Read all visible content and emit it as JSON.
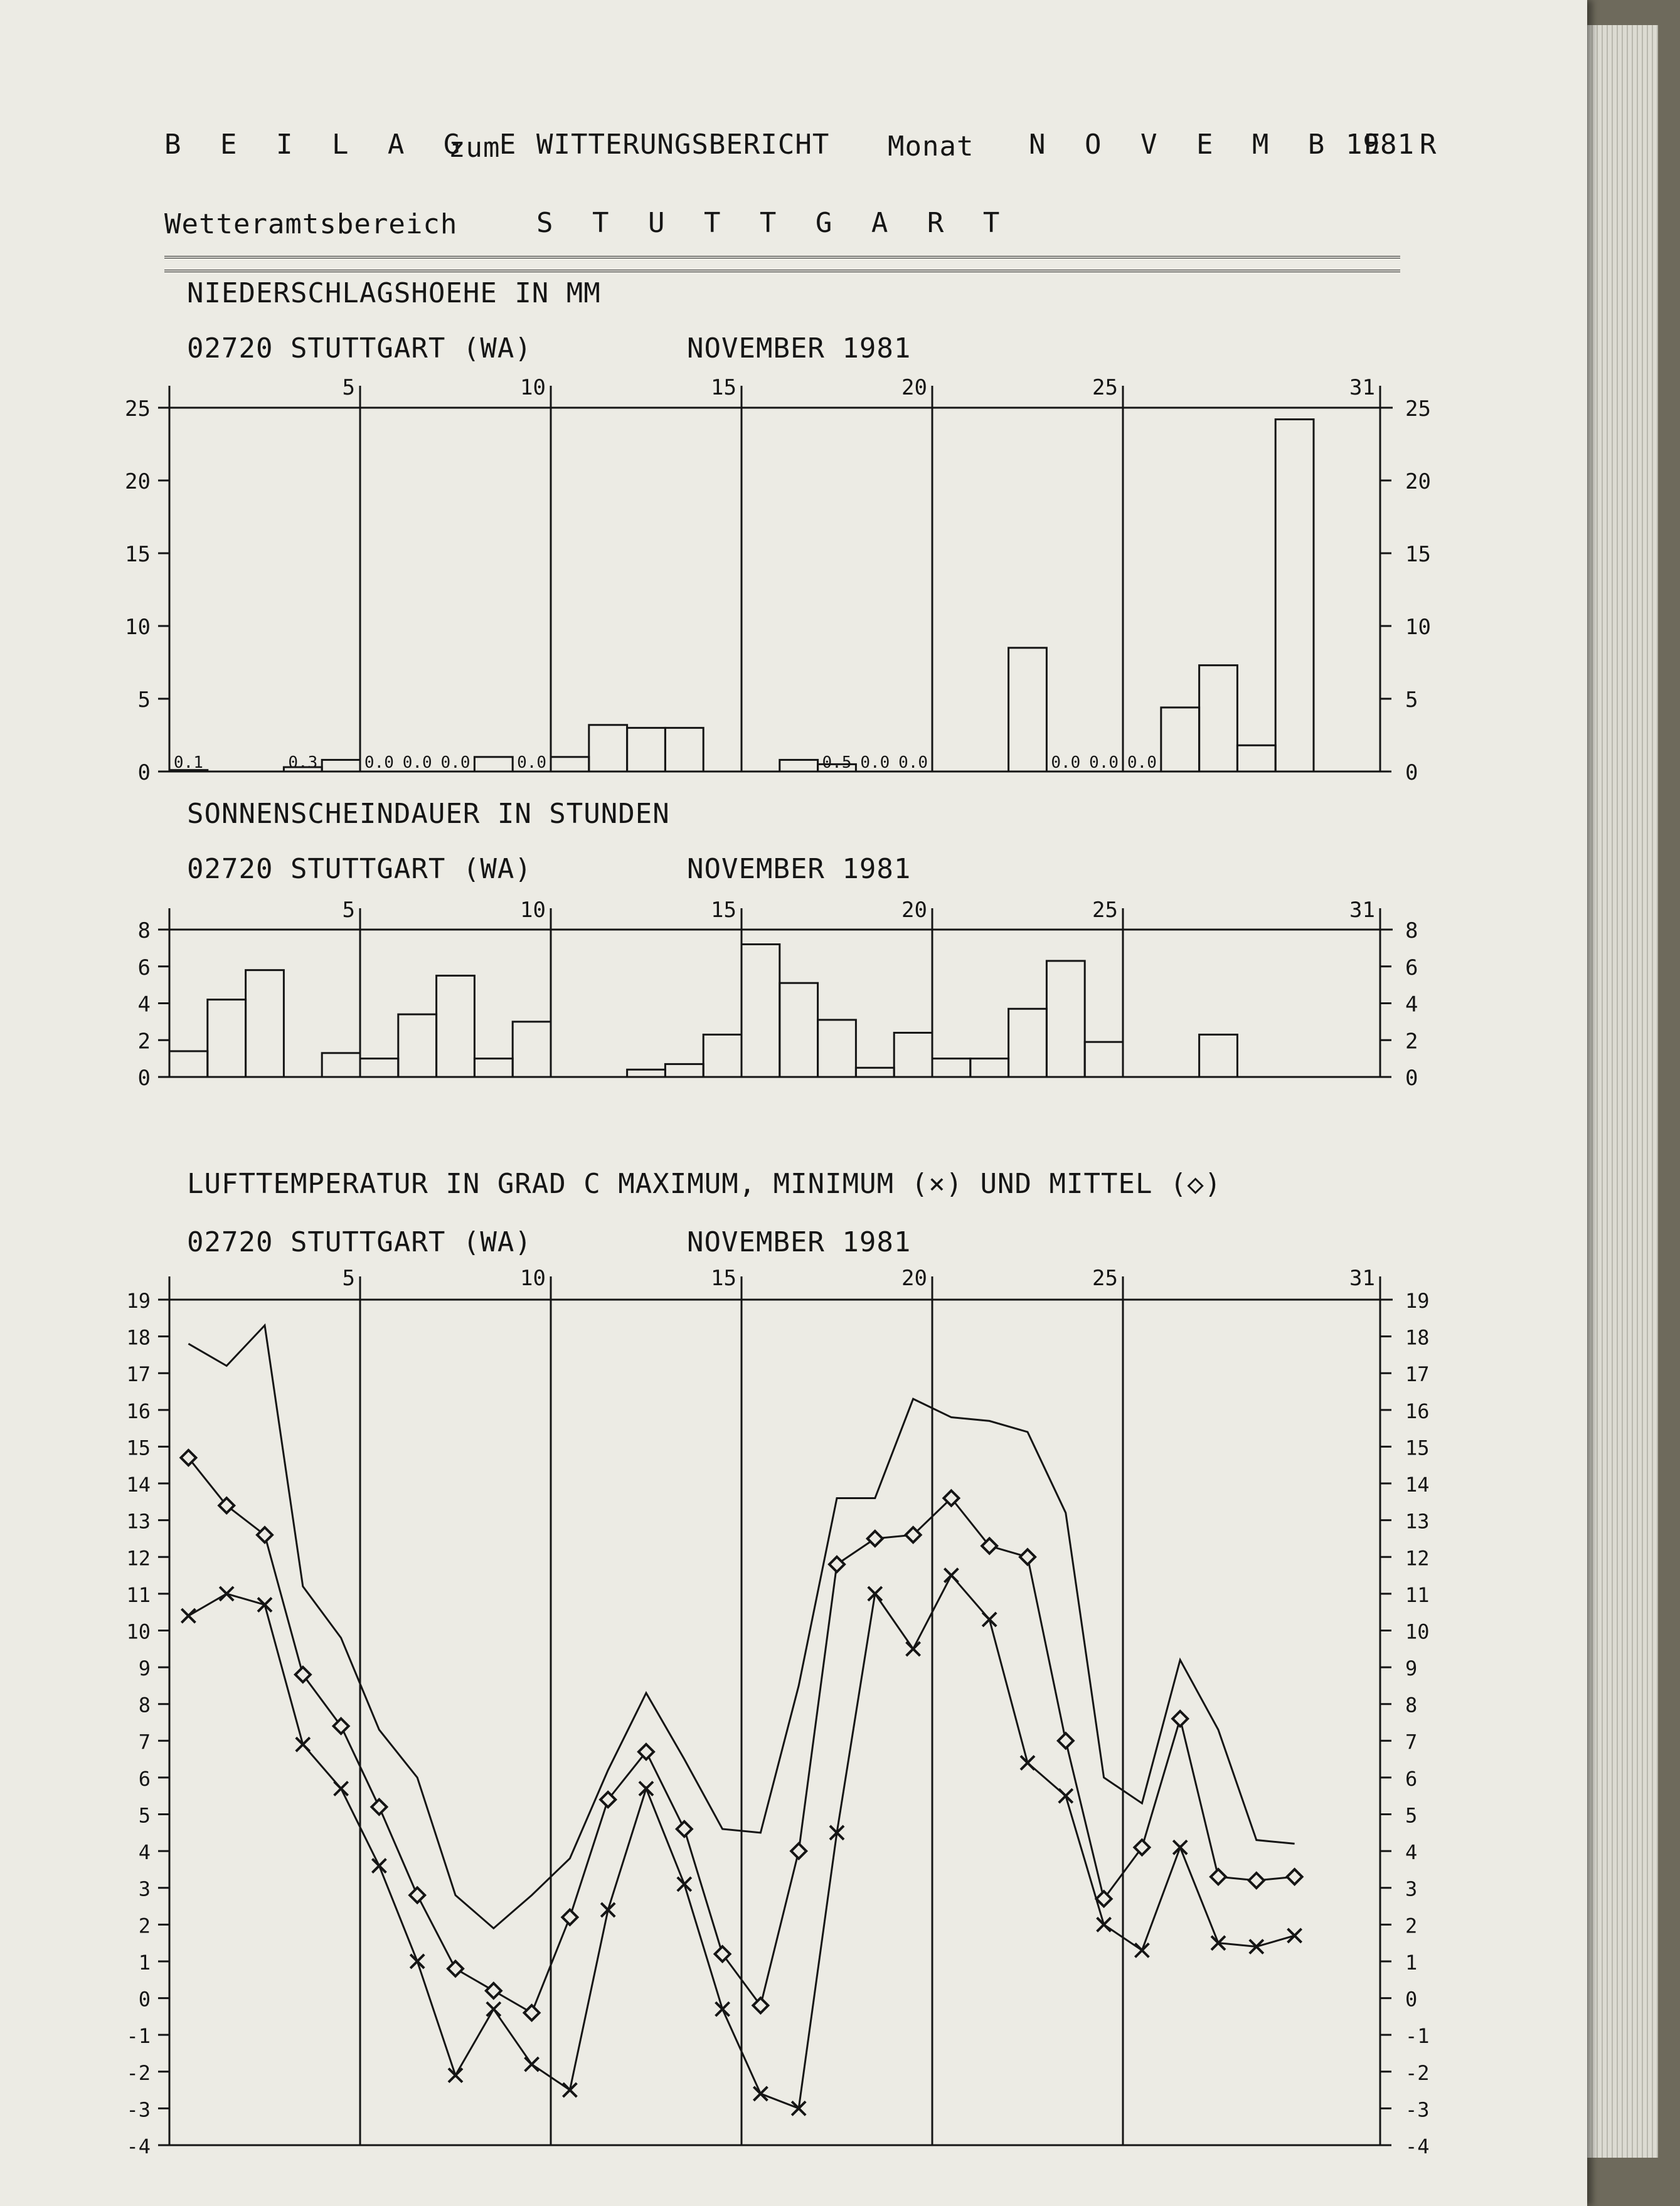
{
  "header": {
    "beilage": "B E I L A G E",
    "zum": "zum",
    "report": "WITTERUNGSBERICHT",
    "monat_label": "Monat",
    "month": "N O V E M B E R",
    "year": "1981",
    "area_label": "Wetteramtsbereich",
    "area": "S T U T T G A R T"
  },
  "colors": {
    "ink": "#151515",
    "paper": "#ecebe4"
  },
  "chart_data": [
    {
      "type": "bar",
      "title": "NIEDERSCHLAGSHOEHE IN MM",
      "station": "02720 STUTTGART (WA)",
      "period": "NOVEMBER 1981",
      "categories": [
        1,
        2,
        3,
        4,
        5,
        6,
        7,
        8,
        9,
        10,
        11,
        12,
        13,
        14,
        15,
        16,
        17,
        18,
        19,
        20,
        21,
        22,
        23,
        24,
        25,
        26,
        27,
        28,
        29,
        30
      ],
      "values": [
        0.1,
        null,
        null,
        0.3,
        0.8,
        0.0,
        0.0,
        0.0,
        1.0,
        0.0,
        1.0,
        3.2,
        3.0,
        3.0,
        null,
        null,
        0.8,
        0.5,
        0.0,
        0.0,
        null,
        null,
        8.5,
        0.0,
        0.0,
        0.0,
        4.4,
        7.3,
        1.8,
        24.2
      ],
      "data_labels": [
        {
          "day": 1,
          "text": "0.1"
        },
        {
          "day": 4,
          "text": "0.3"
        },
        {
          "day": 6,
          "text": "0.0"
        },
        {
          "day": 7,
          "text": "0.0"
        },
        {
          "day": 8,
          "text": "0.0"
        },
        {
          "day": 10,
          "text": "0.0"
        },
        {
          "day": 18,
          "text": "0.5"
        },
        {
          "day": 19,
          "text": "0.0"
        },
        {
          "day": 20,
          "text": "0.0"
        },
        {
          "day": 24,
          "text": "0.0"
        },
        {
          "day": 25,
          "text": "0.0"
        },
        {
          "day": 26,
          "text": "0.0"
        }
      ],
      "day_ticks": [
        5,
        10,
        15,
        20,
        25,
        31
      ],
      "yticks": [
        0,
        5,
        10,
        15,
        20,
        25
      ],
      "ylim": [
        0,
        25
      ]
    },
    {
      "type": "bar",
      "title": "SONNENSCHEINDAUER IN STUNDEN",
      "station": "02720 STUTTGART (WA)",
      "period": "NOVEMBER 1981",
      "categories": [
        1,
        2,
        3,
        4,
        5,
        6,
        7,
        8,
        9,
        10,
        11,
        12,
        13,
        14,
        15,
        16,
        17,
        18,
        19,
        20,
        21,
        22,
        23,
        24,
        25,
        26,
        27,
        28,
        29,
        30
      ],
      "values": [
        1.4,
        4.2,
        5.8,
        null,
        1.3,
        1.0,
        3.4,
        5.5,
        1.0,
        3.0,
        null,
        null,
        0.4,
        0.7,
        2.3,
        7.2,
        5.1,
        3.1,
        0.5,
        2.4,
        1.0,
        1.0,
        3.7,
        6.3,
        1.9,
        null,
        null,
        2.3,
        null,
        null
      ],
      "day_ticks": [
        5,
        10,
        15,
        20,
        25,
        31
      ],
      "yticks": [
        0,
        2,
        4,
        6,
        8
      ],
      "ylim": [
        0,
        8
      ]
    },
    {
      "type": "line",
      "title": "LUFTTEMPERATUR IN GRAD C MAXIMUM, MINIMUM (×) UND MITTEL (◇)",
      "station": "02720 STUTTGART (WA)",
      "period": "NOVEMBER 1981",
      "x": [
        1,
        2,
        3,
        4,
        5,
        6,
        7,
        8,
        9,
        10,
        11,
        12,
        13,
        14,
        15,
        16,
        17,
        18,
        19,
        20,
        21,
        22,
        23,
        24,
        25,
        26,
        27,
        28,
        29,
        30
      ],
      "series": [
        {
          "name": "MAXIMUM",
          "marker": "none",
          "values": [
            17.8,
            17.2,
            18.3,
            11.2,
            9.8,
            7.3,
            6.0,
            2.8,
            1.9,
            2.8,
            3.8,
            6.2,
            8.3,
            6.5,
            4.6,
            4.5,
            8.5,
            13.6,
            13.6,
            16.3,
            15.8,
            15.7,
            15.4,
            13.2,
            6.0,
            5.3,
            9.2,
            7.3,
            4.3,
            4.2
          ]
        },
        {
          "name": "MINIMUM",
          "marker": "x",
          "values": [
            10.4,
            11.0,
            10.7,
            6.9,
            5.7,
            3.6,
            1.0,
            -2.1,
            -0.3,
            -1.8,
            -2.5,
            2.4,
            5.7,
            3.1,
            -0.3,
            -2.6,
            -3.0,
            4.5,
            11.0,
            9.5,
            11.5,
            10.3,
            6.4,
            5.5,
            2.0,
            1.3,
            4.1,
            1.5,
            1.4,
            1.7
          ]
        },
        {
          "name": "MITTEL",
          "marker": "diamond",
          "values": [
            14.7,
            13.4,
            12.6,
            8.8,
            7.4,
            5.2,
            2.8,
            0.8,
            0.2,
            -0.4,
            2.2,
            5.4,
            6.7,
            4.6,
            1.2,
            -0.2,
            4.0,
            11.8,
            12.5,
            12.6,
            13.6,
            12.3,
            12.0,
            7.0,
            2.7,
            4.1,
            7.6,
            3.3,
            3.2,
            3.3
          ]
        }
      ],
      "day_ticks": [
        5,
        10,
        15,
        20,
        25,
        31
      ],
      "yticks": [
        -4,
        -3,
        -2,
        -1,
        0,
        1,
        2,
        3,
        4,
        5,
        6,
        7,
        8,
        9,
        10,
        11,
        12,
        13,
        14,
        15,
        16,
        17,
        18,
        19
      ],
      "ylim": [
        -4,
        19
      ]
    }
  ]
}
